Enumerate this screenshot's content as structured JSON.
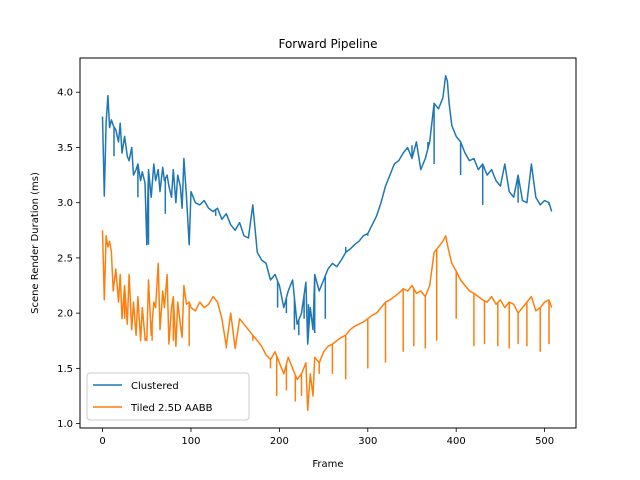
{
  "chart_data": {
    "type": "line",
    "title": "Forward Pipeline",
    "xlabel": "Frame",
    "ylabel": "Scene Render Duration (ms)",
    "xlim": [
      -25.5,
      535.5
    ],
    "ylim": [
      0.96,
      4.31
    ],
    "xticks": [
      0,
      100,
      200,
      300,
      400,
      500
    ],
    "yticks": [
      1.0,
      1.5,
      2.0,
      2.5,
      3.0,
      3.5,
      4.0
    ],
    "legend_position": "lower-left",
    "grid": false,
    "series": [
      {
        "name": "Clustered",
        "color": "#1f77b4",
        "x": [
          0,
          2,
          4,
          6,
          8,
          10,
          12,
          15,
          18,
          20,
          22,
          25,
          28,
          30,
          33,
          35,
          38,
          40,
          43,
          45,
          48,
          50,
          52,
          55,
          58,
          60,
          63,
          65,
          68,
          70,
          73,
          75,
          78,
          80,
          83,
          85,
          88,
          90,
          92,
          95,
          98,
          100,
          105,
          110,
          115,
          120,
          125,
          130,
          135,
          140,
          145,
          150,
          155,
          160,
          165,
          170,
          175,
          180,
          185,
          190,
          195,
          200,
          205,
          210,
          215,
          220,
          225,
          230,
          232,
          235,
          238,
          240,
          245,
          250,
          255,
          260,
          265,
          270,
          275,
          280,
          285,
          290,
          295,
          300,
          305,
          310,
          315,
          320,
          325,
          330,
          335,
          340,
          345,
          350,
          355,
          360,
          365,
          370,
          375,
          380,
          385,
          388,
          390,
          392,
          395,
          400,
          405,
          410,
          415,
          420,
          425,
          430,
          435,
          440,
          445,
          450,
          455,
          460,
          465,
          470,
          475,
          480,
          485,
          490,
          495,
          500,
          505,
          508
        ],
        "y": [
          3.78,
          3.06,
          3.72,
          3.97,
          3.68,
          3.75,
          3.7,
          3.66,
          3.55,
          3.72,
          3.45,
          3.6,
          3.42,
          3.38,
          3.5,
          3.25,
          3.3,
          3.35,
          3.2,
          3.28,
          3.18,
          2.62,
          3.3,
          3.05,
          3.35,
          3.2,
          3.3,
          3.1,
          3.32,
          3.2,
          3.25,
          3.15,
          3.05,
          3.3,
          3.0,
          3.25,
          3.15,
          2.95,
          3.4,
          3.05,
          2.62,
          3.1,
          3.0,
          2.98,
          3.02,
          2.95,
          2.92,
          2.95,
          2.85,
          2.9,
          2.8,
          2.75,
          2.82,
          2.7,
          2.68,
          2.98,
          2.55,
          2.48,
          2.45,
          2.3,
          2.35,
          2.25,
          2.05,
          2.2,
          2.3,
          1.9,
          2.0,
          2.28,
          1.72,
          2.05,
          1.85,
          2.35,
          2.2,
          2.3,
          2.4,
          2.45,
          2.42,
          2.48,
          2.55,
          2.58,
          2.62,
          2.65,
          2.7,
          2.72,
          2.8,
          2.88,
          3.0,
          3.15,
          3.25,
          3.35,
          3.38,
          3.45,
          3.5,
          3.4,
          3.55,
          3.3,
          3.4,
          3.55,
          3.9,
          3.85,
          3.95,
          4.15,
          4.1,
          3.9,
          3.7,
          3.6,
          3.55,
          3.45,
          3.38,
          3.4,
          3.3,
          3.35,
          3.25,
          3.3,
          3.2,
          3.15,
          3.35,
          3.1,
          3.05,
          3.25,
          3.02,
          3.0,
          3.35,
          3.05,
          2.98,
          3.02,
          3.0,
          2.92
        ],
        "spikes": [
          [
            13,
            3.42
          ],
          [
            40,
            3.05
          ],
          [
            52,
            2.62
          ],
          [
            71,
            2.9
          ],
          [
            98,
            2.62
          ],
          [
            128,
            2.88
          ],
          [
            198,
            2.05
          ],
          [
            208,
            2.0
          ],
          [
            217,
            1.85
          ],
          [
            222,
            1.8
          ],
          [
            228,
            1.95
          ],
          [
            233,
            2.08
          ],
          [
            240,
            1.82
          ],
          [
            252,
            1.95
          ],
          [
            275,
            2.6
          ],
          [
            300,
            2.7
          ],
          [
            345,
            3.48
          ],
          [
            350,
            3.52
          ],
          [
            368,
            3.55
          ],
          [
            375,
            3.35
          ],
          [
            405,
            3.25
          ],
          [
            430,
            2.98
          ],
          [
            470,
            3.0
          ],
          [
            505,
            2.98
          ]
        ]
      },
      {
        "name": "Tiled 2.5D AABB",
        "color": "#ff7f0e",
        "x": [
          0,
          2,
          4,
          6,
          8,
          10,
          12,
          15,
          18,
          20,
          22,
          25,
          28,
          30,
          33,
          35,
          38,
          40,
          43,
          45,
          48,
          50,
          52,
          55,
          58,
          60,
          63,
          65,
          68,
          70,
          73,
          75,
          78,
          80,
          83,
          85,
          88,
          90,
          92,
          95,
          98,
          100,
          105,
          110,
          115,
          120,
          125,
          130,
          135,
          140,
          145,
          150,
          155,
          160,
          165,
          170,
          175,
          180,
          185,
          190,
          195,
          200,
          205,
          210,
          215,
          220,
          225,
          230,
          232,
          235,
          238,
          240,
          245,
          250,
          255,
          260,
          265,
          270,
          275,
          280,
          285,
          290,
          295,
          300,
          305,
          310,
          315,
          320,
          325,
          330,
          335,
          340,
          345,
          350,
          355,
          360,
          365,
          370,
          375,
          380,
          385,
          388,
          390,
          392,
          395,
          400,
          405,
          410,
          415,
          420,
          425,
          430,
          435,
          440,
          445,
          450,
          455,
          460,
          465,
          470,
          475,
          480,
          485,
          490,
          495,
          500,
          505,
          508
        ],
        "y": [
          2.75,
          2.12,
          2.7,
          2.6,
          2.65,
          2.55,
          2.2,
          2.4,
          2.1,
          2.35,
          1.95,
          2.25,
          1.9,
          2.35,
          1.85,
          2.1,
          1.8,
          2.15,
          1.75,
          2.05,
          1.78,
          1.75,
          2.3,
          1.8,
          2.1,
          2.05,
          2.45,
          1.85,
          2.2,
          2.05,
          2.35,
          1.72,
          2.05,
          2.15,
          1.7,
          2.1,
          1.9,
          1.78,
          2.25,
          2.08,
          2.1,
          2.05,
          2.02,
          2.1,
          2.05,
          2.08,
          2.15,
          2.1,
          1.95,
          1.7,
          2.0,
          1.68,
          1.95,
          1.9,
          1.85,
          1.8,
          1.75,
          1.7,
          1.62,
          1.58,
          1.65,
          1.55,
          1.45,
          1.6,
          1.5,
          1.4,
          1.45,
          1.55,
          1.12,
          1.45,
          1.25,
          1.6,
          1.55,
          1.65,
          1.7,
          1.72,
          1.75,
          1.78,
          1.8,
          1.85,
          1.88,
          1.9,
          1.92,
          1.95,
          1.98,
          2.0,
          2.05,
          2.1,
          2.12,
          2.15,
          2.18,
          2.22,
          2.2,
          2.25,
          2.18,
          2.2,
          2.15,
          2.25,
          2.55,
          2.6,
          2.65,
          2.7,
          2.62,
          2.55,
          2.45,
          2.38,
          2.3,
          2.25,
          2.2,
          2.18,
          2.15,
          2.12,
          2.1,
          2.15,
          2.08,
          2.12,
          2.05,
          2.1,
          2.08,
          2.0,
          2.05,
          2.1,
          2.15,
          2.02,
          2.05,
          2.1,
          2.12,
          2.05
        ],
        "spikes": [
          [
            25,
            1.95
          ],
          [
            33,
            1.85
          ],
          [
            48,
            1.75
          ],
          [
            56,
            1.75
          ],
          [
            80,
            1.75
          ],
          [
            98,
            1.7
          ],
          [
            140,
            1.68
          ],
          [
            150,
            1.68
          ],
          [
            170,
            1.75
          ],
          [
            190,
            1.5
          ],
          [
            197,
            1.25
          ],
          [
            208,
            1.3
          ],
          [
            218,
            1.2
          ],
          [
            225,
            1.25
          ],
          [
            232,
            1.12
          ],
          [
            245,
            1.45
          ],
          [
            260,
            1.45
          ],
          [
            275,
            1.4
          ],
          [
            300,
            1.5
          ],
          [
            320,
            1.55
          ],
          [
            340,
            1.65
          ],
          [
            352,
            1.7
          ],
          [
            365,
            1.68
          ],
          [
            378,
            1.75
          ],
          [
            400,
            1.95
          ],
          [
            420,
            1.7
          ],
          [
            432,
            1.72
          ],
          [
            447,
            1.7
          ],
          [
            460,
            1.68
          ],
          [
            470,
            1.72
          ],
          [
            480,
            1.7
          ],
          [
            495,
            1.65
          ],
          [
            505,
            1.72
          ]
        ]
      }
    ]
  }
}
